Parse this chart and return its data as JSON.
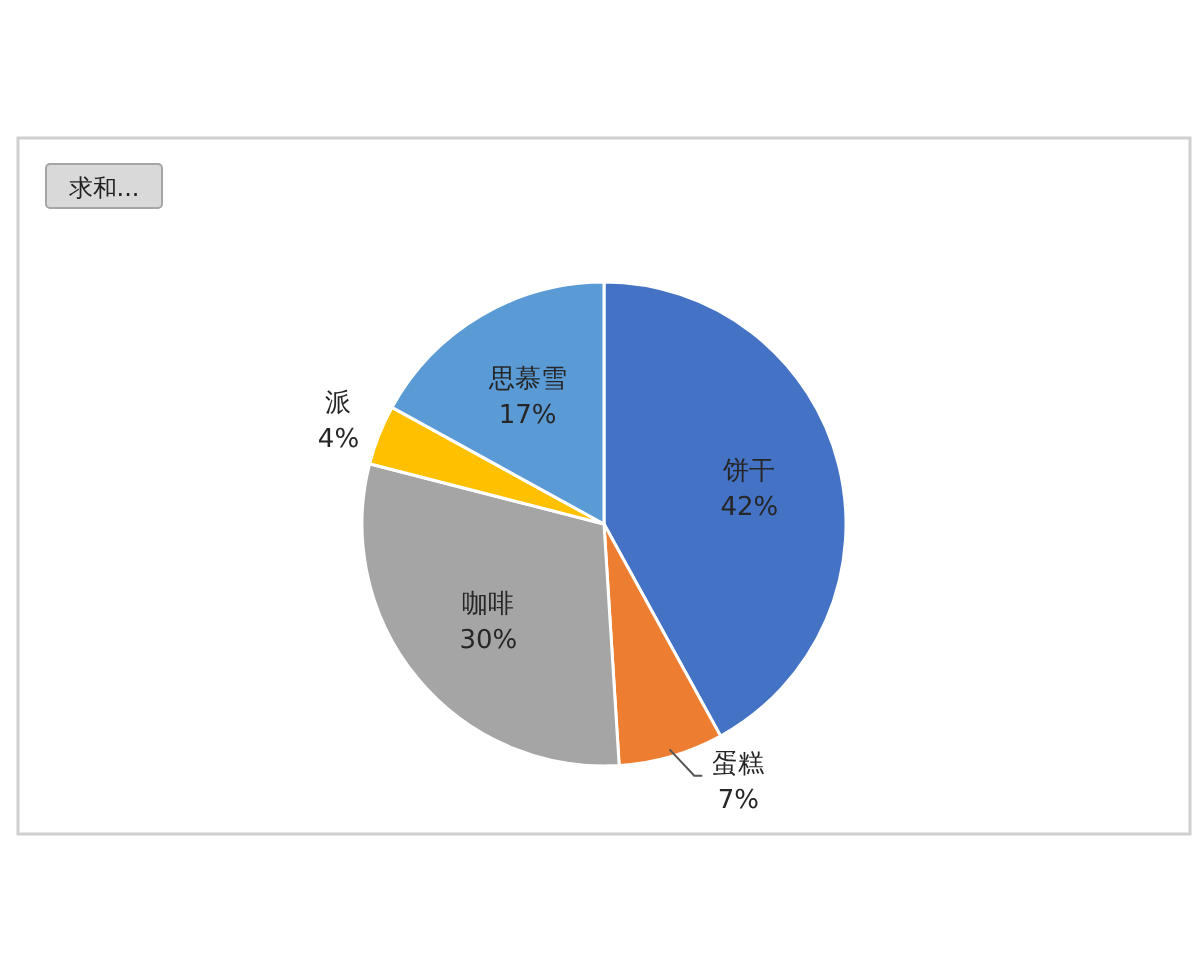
{
  "chart_data": {
    "type": "pie",
    "categories": [
      "饼干",
      "蛋糕",
      "咖啡",
      "派",
      "思慕雪"
    ],
    "values": [
      42,
      7,
      30,
      4,
      17
    ],
    "value_labels": [
      "42%",
      "7%",
      "30%",
      "4%",
      "17%"
    ],
    "colors": [
      "#4472c4",
      "#ed7d31",
      "#a5a5a5",
      "#ffc000",
      "#5b9bd5"
    ],
    "annotations": [
      "求和..."
    ]
  }
}
